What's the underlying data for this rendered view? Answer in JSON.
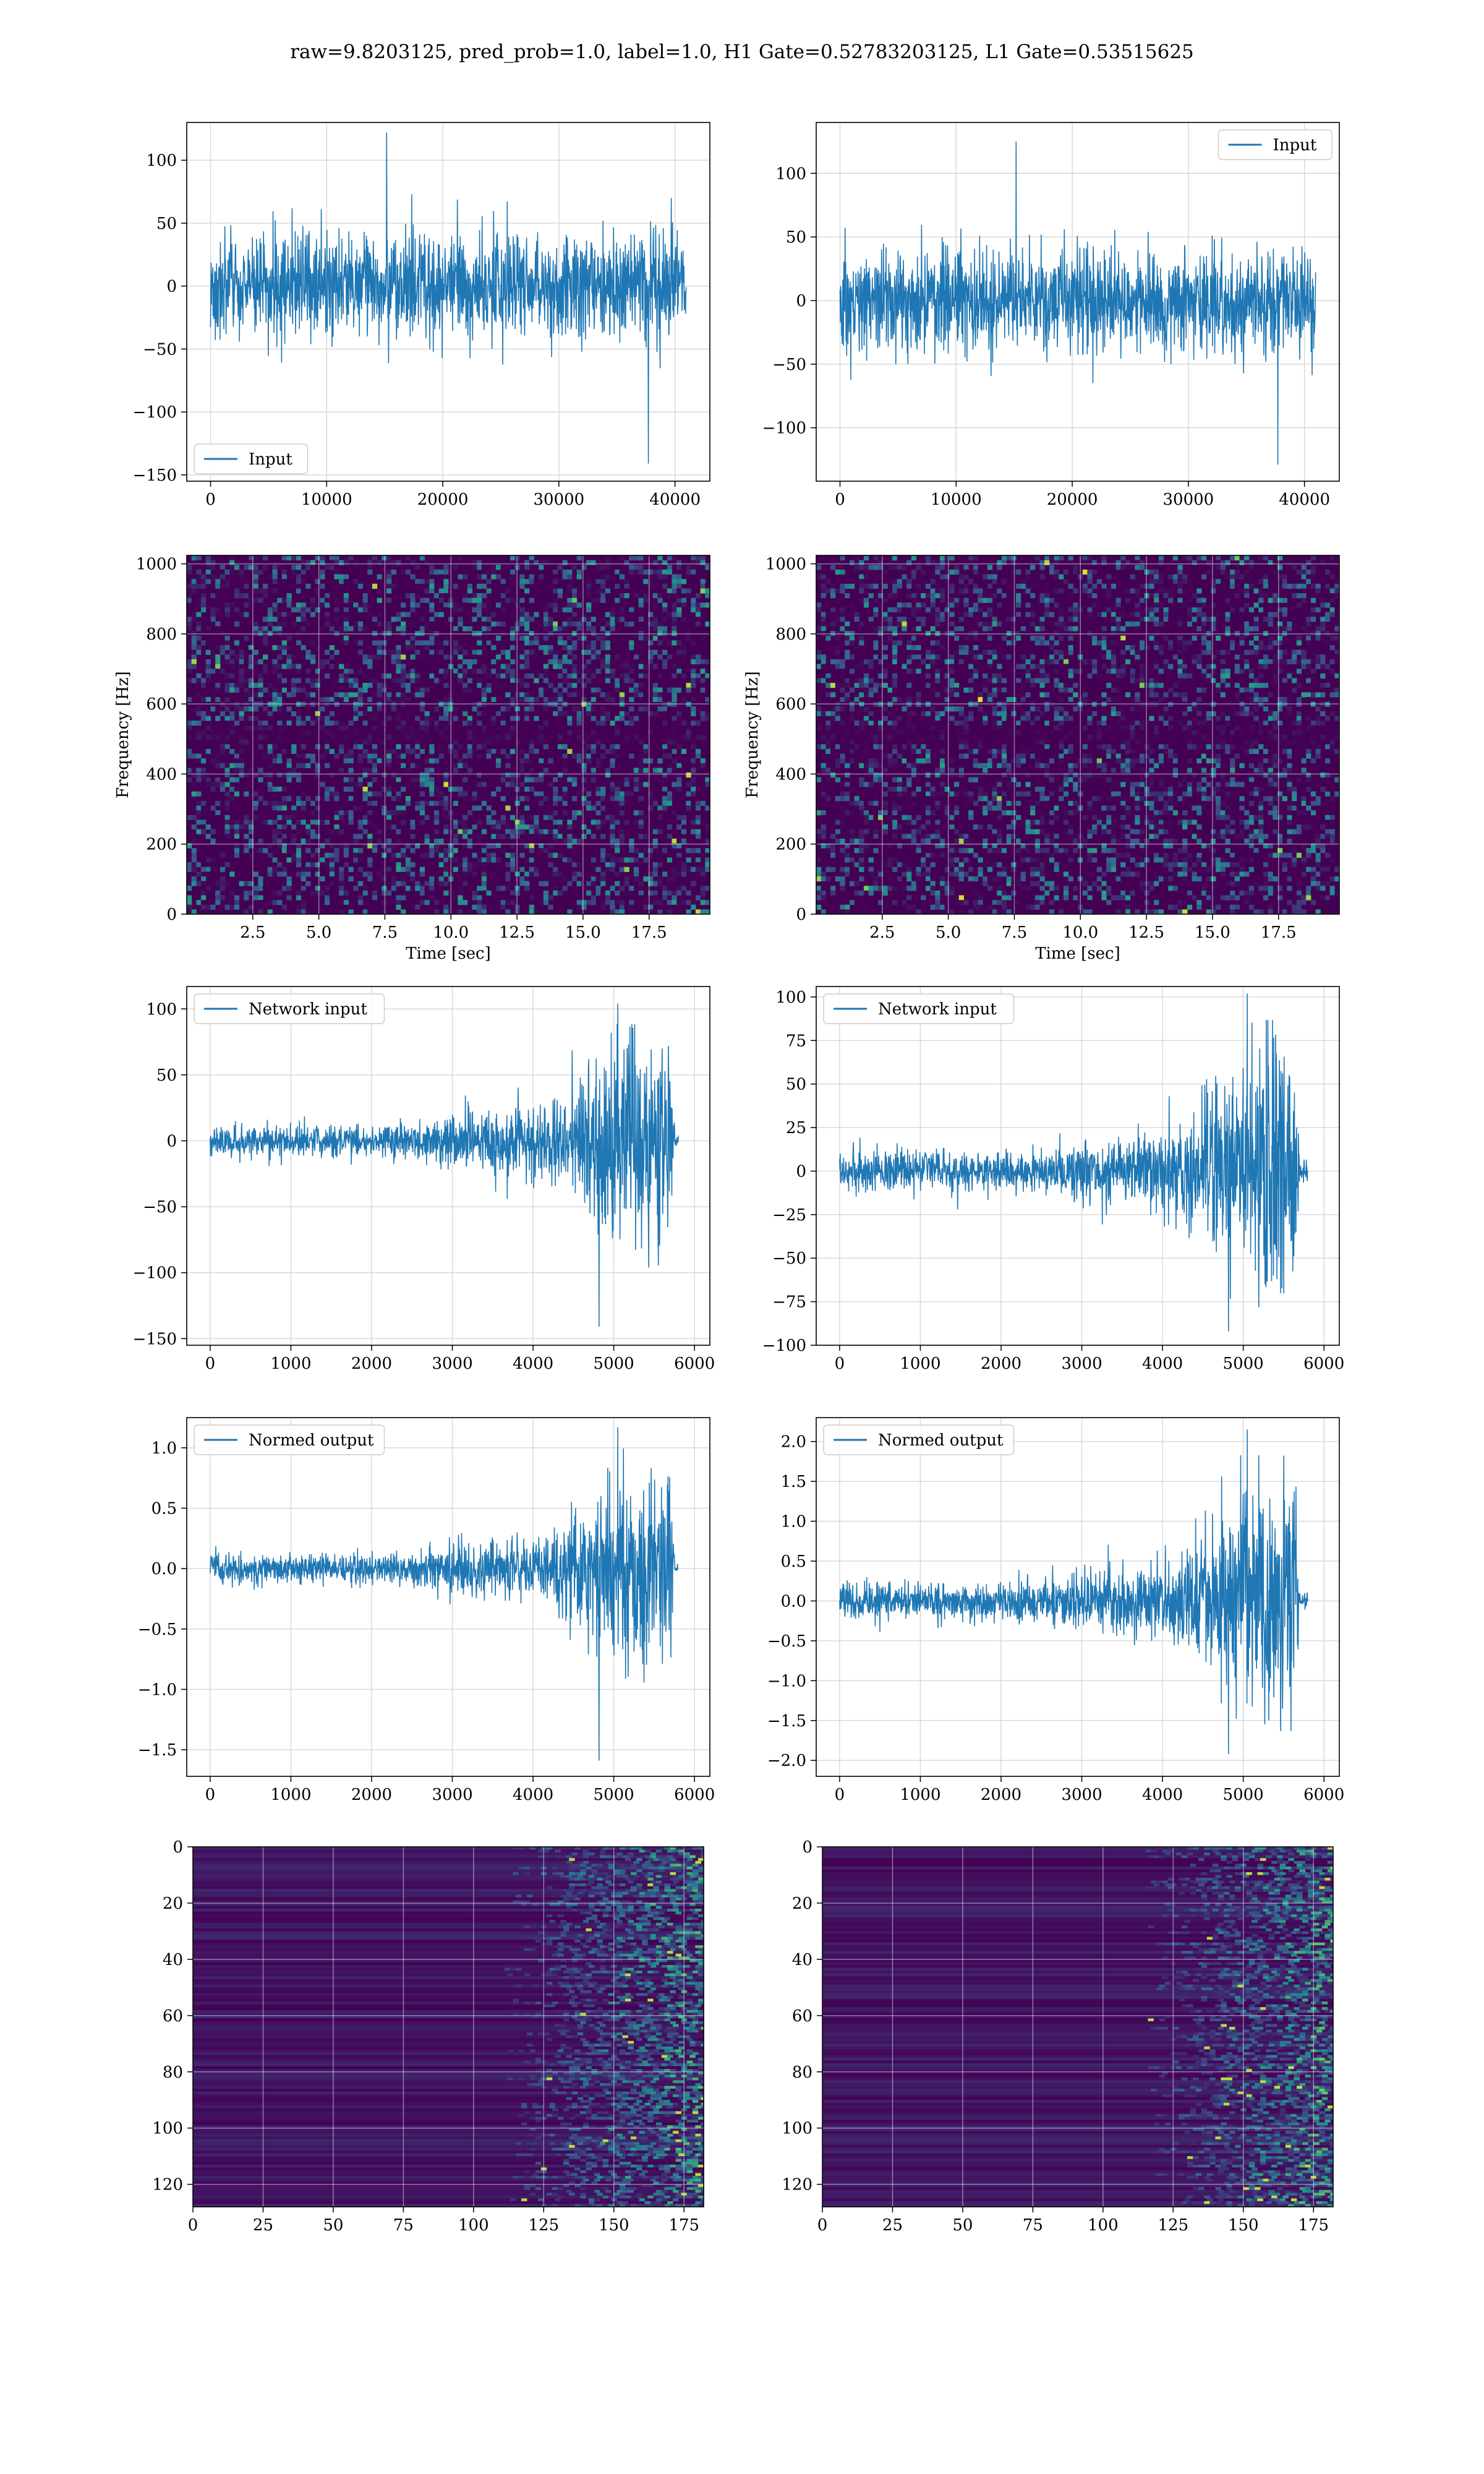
{
  "figure": {
    "title": "raw=9.8203125, pred_prob=1.0, label=1.0, H1 Gate=0.52783203125, L1 Gate=0.53515625"
  },
  "colors": {
    "line": "#1f77b4",
    "grid": "#d9d9d9",
    "viridis_dark": "#440154",
    "viridis_mid": "#21908d",
    "viridis_bright": "#fde725"
  },
  "chart_data": [
    {
      "id": "h1-input",
      "type": "line",
      "title": "",
      "xlabel": "",
      "ylabel": "",
      "xlim": [
        -2050,
        43000
      ],
      "ylim": [
        -155,
        130
      ],
      "xticks": [
        0,
        10000,
        20000,
        30000,
        40000
      ],
      "yticks": [
        -150,
        -100,
        -50,
        0,
        50,
        100
      ],
      "legend": "lower-left",
      "legend_position": "lower-left",
      "series": [
        {
          "name": "Input",
          "x_range": [
            0,
            40960
          ],
          "envelope": {
            "typical_amplitude": 45,
            "max": 122,
            "min": -141,
            "profile": "stationary noise"
          }
        }
      ]
    },
    {
      "id": "l1-input",
      "type": "line",
      "title": "",
      "xlabel": "",
      "ylabel": "",
      "xlim": [
        -2050,
        43000
      ],
      "ylim": [
        -142,
        140
      ],
      "xticks": [
        0,
        10000,
        20000,
        30000,
        40000
      ],
      "yticks": [
        -100,
        -50,
        0,
        50,
        100
      ],
      "legend": "upper-right",
      "legend_position": "upper-right",
      "series": [
        {
          "name": "Input",
          "x_range": [
            0,
            40960
          ],
          "envelope": {
            "typical_amplitude": 45,
            "max": 125,
            "min": -129,
            "profile": "stationary noise"
          }
        }
      ]
    },
    {
      "id": "h1-spectrogram",
      "type": "heatmap",
      "title": "",
      "xlabel": "Time [sec]",
      "ylabel": "Frequency [Hz]",
      "xlim": [
        0,
        19.8
      ],
      "ylim": [
        0,
        1024
      ],
      "xticks": [
        2.5,
        5.0,
        7.5,
        10.0,
        12.5,
        15.0,
        17.5
      ],
      "yticks": [
        0,
        200,
        400,
        600,
        800,
        1000
      ],
      "colormap": "viridis",
      "dark_band_hz": 512
    },
    {
      "id": "l1-spectrogram",
      "type": "heatmap",
      "title": "",
      "xlabel": "Time [sec]",
      "ylabel": "Frequency [Hz]",
      "xlim": [
        0,
        19.8
      ],
      "ylim": [
        0,
        1024
      ],
      "xticks": [
        2.5,
        5.0,
        7.5,
        10.0,
        12.5,
        15.0,
        17.5
      ],
      "yticks": [
        0,
        200,
        400,
        600,
        800,
        1000
      ],
      "colormap": "viridis",
      "dark_band_hz": 512
    },
    {
      "id": "h1-network-input",
      "type": "line",
      "title": "",
      "xlabel": "",
      "ylabel": "",
      "xlim": [
        -290,
        6190
      ],
      "ylim": [
        -155,
        117
      ],
      "xticks": [
        0,
        1000,
        2000,
        3000,
        4000,
        5000,
        6000
      ],
      "yticks": [
        -150,
        -100,
        -50,
        0,
        50,
        100
      ],
      "legend": "upper-left",
      "legend_position": "upper-left",
      "series": [
        {
          "name": "Network input",
          "x_range": [
            0,
            5800
          ],
          "envelope": {
            "knots": [
              [
                0,
                13
              ],
              [
                2400,
                14
              ],
              [
                3200,
                24
              ],
              [
                4200,
                32
              ],
              [
                4600,
                55
              ],
              [
                5000,
                82
              ],
              [
                5700,
                82
              ],
              [
                5760,
                5
              ],
              [
                5800,
                5
              ]
            ],
            "max": 104,
            "min": -141
          }
        }
      ]
    },
    {
      "id": "l1-network-input",
      "type": "line",
      "title": "",
      "xlabel": "",
      "ylabel": "",
      "xlim": [
        -290,
        6190
      ],
      "ylim": [
        -100,
        106
      ],
      "xticks": [
        0,
        1000,
        2000,
        3000,
        4000,
        5000,
        6000
      ],
      "yticks": [
        -100,
        -75,
        -50,
        -25,
        0,
        25,
        50,
        75,
        100
      ],
      "legend": "upper-left",
      "legend_position": "upper-left",
      "series": [
        {
          "name": "Network input",
          "x_range": [
            0,
            5800
          ],
          "envelope": {
            "knots": [
              [
                0,
                12
              ],
              [
                2400,
                13
              ],
              [
                3200,
                20
              ],
              [
                4200,
                30
              ],
              [
                4600,
                55
              ],
              [
                5000,
                70
              ],
              [
                5650,
                80
              ],
              [
                5700,
                5
              ],
              [
                5800,
                5
              ]
            ],
            "max": 102,
            "min": -92
          }
        }
      ]
    },
    {
      "id": "h1-normed-output",
      "type": "line",
      "title": "",
      "xlabel": "",
      "ylabel": "",
      "xlim": [
        -290,
        6190
      ],
      "ylim": [
        -1.72,
        1.25
      ],
      "xticks": [
        0,
        1000,
        2000,
        3000,
        4000,
        5000,
        6000
      ],
      "yticks": [
        -1.5,
        -1.0,
        -0.5,
        0.0,
        0.5,
        1.0
      ],
      "legend": "upper-left",
      "legend_position": "upper-left",
      "series": [
        {
          "name": "Normed output",
          "x_range": [
            0,
            5800
          ],
          "envelope": {
            "knots": [
              [
                0,
                0.13
              ],
              [
                2400,
                0.14
              ],
              [
                3200,
                0.24
              ],
              [
                4200,
                0.33
              ],
              [
                4600,
                0.55
              ],
              [
                5000,
                0.85
              ],
              [
                5700,
                0.85
              ],
              [
                5760,
                0.05
              ],
              [
                5800,
                0.05
              ]
            ],
            "max": 1.17,
            "min": -1.59
          }
        }
      ]
    },
    {
      "id": "l1-normed-output",
      "type": "line",
      "title": "",
      "xlabel": "",
      "ylabel": "",
      "xlim": [
        -290,
        6190
      ],
      "ylim": [
        -2.2,
        2.3
      ],
      "xticks": [
        0,
        1000,
        2000,
        3000,
        4000,
        5000,
        6000
      ],
      "yticks": [
        -2.0,
        -1.5,
        -1.0,
        -0.5,
        0.0,
        0.5,
        1.0,
        1.5,
        2.0
      ],
      "legend": "upper-left",
      "legend_position": "upper-left",
      "series": [
        {
          "name": "Normed output",
          "x_range": [
            0,
            5800
          ],
          "envelope": {
            "knots": [
              [
                0,
                0.26
              ],
              [
                2400,
                0.28
              ],
              [
                3200,
                0.42
              ],
              [
                4200,
                0.6
              ],
              [
                4600,
                1.1
              ],
              [
                5000,
                1.5
              ],
              [
                5650,
                1.6
              ],
              [
                5700,
                0.1
              ],
              [
                5800,
                0.1
              ]
            ],
            "max": 2.15,
            "min": -1.92
          }
        }
      ]
    },
    {
      "id": "h1-feature-map",
      "type": "heatmap",
      "title": "",
      "xlabel": "",
      "ylabel": "",
      "xlim": [
        0,
        182
      ],
      "ylim": [
        128,
        0
      ],
      "xticks": [
        0,
        25,
        50,
        75,
        100,
        125,
        150,
        175
      ],
      "yticks": [
        0,
        20,
        40,
        60,
        80,
        100,
        120
      ],
      "colormap": "viridis",
      "activity_onset_col": 120
    },
    {
      "id": "l1-feature-map",
      "type": "heatmap",
      "title": "",
      "xlabel": "",
      "ylabel": "",
      "xlim": [
        0,
        182
      ],
      "ylim": [
        128,
        0
      ],
      "xticks": [
        0,
        25,
        50,
        75,
        100,
        125,
        150,
        175
      ],
      "yticks": [
        0,
        20,
        40,
        60,
        80,
        100,
        120
      ],
      "colormap": "viridis",
      "activity_onset_col": 125
    }
  ]
}
